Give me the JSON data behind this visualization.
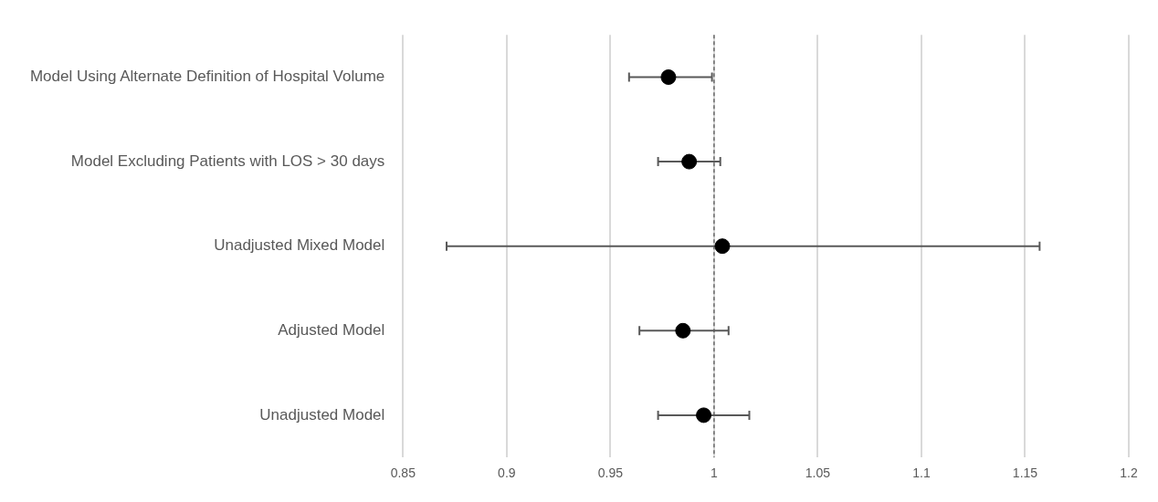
{
  "chart_data": {
    "type": "scatter",
    "orientation": "horizontal",
    "categories": [
      "Model Using Alternate Definition of Hospital Volume",
      "Model Excluding Patients with LOS > 30 days",
      "Unadjusted Mixed Model",
      "Adjusted Model",
      "Unadjusted Model"
    ],
    "values": [
      0.978,
      0.988,
      1.004,
      0.985,
      0.995
    ],
    "errors": [
      [
        0.959,
        0.999
      ],
      [
        0.973,
        1.003
      ],
      [
        0.871,
        1.157
      ],
      [
        0.964,
        1.007
      ],
      [
        0.973,
        1.017
      ]
    ],
    "color": "#000000",
    "marker": "circle",
    "xlim": [
      0.85,
      1.2
    ],
    "xticks": [
      0.85,
      0.9,
      0.95,
      1,
      1.05,
      1.1,
      1.15,
      1.2
    ],
    "grid": "x",
    "legend": false,
    "ref_lines": [
      {
        "axis": "x",
        "value": 1,
        "color": "#595959",
        "line_style": "dashed"
      }
    ]
  }
}
